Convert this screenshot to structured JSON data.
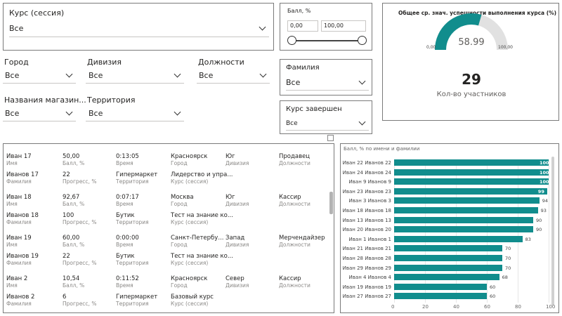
{
  "filters": {
    "course_session": {
      "label": "Курс (сессия)",
      "value": "Все"
    },
    "city": {
      "label": "Город",
      "value": "Все"
    },
    "division": {
      "label": "Дивизия",
      "value": "Все"
    },
    "positions": {
      "label": "Должности",
      "value": "Все"
    },
    "store_names": {
      "label": "Названия магазин...",
      "value": "Все"
    },
    "territory": {
      "label": "Территория",
      "value": "Все"
    },
    "surname": {
      "label": "Фамилия",
      "value": "Все"
    },
    "course_completed": {
      "label": "Курс завершен",
      "value": "Все"
    }
  },
  "score_slider": {
    "label": "Балл, %",
    "min_value": "0,00",
    "max_value": "100,00"
  },
  "gauge": {
    "title": "Общее ср. знач. успешности выполнения курса (%)",
    "value": "58.99",
    "min": "0,00",
    "max": "100,00",
    "fraction": 0.5899,
    "color": "#118d8d"
  },
  "kpi": {
    "value": "29",
    "label": "Кол-во участников"
  },
  "table": {
    "records": [
      {
        "r1": [
          "Иван 17",
          "50,00",
          "0:13:05",
          "Красноярск",
          "Юг",
          "Продавец"
        ],
        "s1": [
          "Имя",
          "Балл, %",
          "Время",
          "Город",
          "Дивизия",
          "Должности"
        ],
        "r2": [
          "Иванов 17",
          "22",
          "Гипермаркет",
          "Лидерство и упра..."
        ],
        "s2": [
          "Фамилия",
          "Прогресс, %",
          "Территория",
          "Курс (сессия)"
        ]
      },
      {
        "r1": [
          "Иван 18",
          "92,67",
          "0:07:17",
          "Москва",
          "Юг",
          "Кассир"
        ],
        "s1": [
          "Имя",
          "Балл, %",
          "Время",
          "Город",
          "Дивизия",
          "Должности"
        ],
        "r2": [
          "Иванов 18",
          "100",
          "Бутик",
          "Тест на знание ко..."
        ],
        "s2": [
          "Фамилия",
          "Прогресс, %",
          "Территория",
          "Курс (сессия)"
        ]
      },
      {
        "r1": [
          "Иван 19",
          "60,00",
          "0:00:00",
          "Санкт-Петербу...",
          "Запад",
          "Мерчендайзер"
        ],
        "s1": [
          "Имя",
          "Балл, %",
          "Время",
          "Город",
          "Дивизия",
          "Должности"
        ],
        "r2": [
          "Иванов 19",
          "22",
          "Бутик",
          "Тест на знание ко..."
        ],
        "s2": [
          "Фамилия",
          "Прогресс, %",
          "Территория",
          "Курс (сессия)"
        ]
      },
      {
        "r1": [
          "Иван 2",
          "10,54",
          "0:11:52",
          "Красноярск",
          "Север",
          "Кассир"
        ],
        "s1": [
          "Имя",
          "Балл, %",
          "Время",
          "Город",
          "Дивизия",
          "Должности"
        ],
        "r2": [
          "Иванов 2",
          "6",
          "Гипермаркет",
          "Базовый курс"
        ],
        "s2": [
          "Фамилия",
          "Прогресс, %",
          "Территория",
          "Курс (сессия)"
        ]
      }
    ]
  },
  "chart_data": {
    "type": "bar",
    "orientation": "horizontal",
    "title": "Балл, % по имени и фамилии",
    "categories": [
      "Иван 22 Иванов 22",
      "Иван 24 Иванов 24",
      "Иван 9 Иванов 9",
      "Иван 23 Иванов 23",
      "Иван 3 Иванов 3",
      "Иван 18 Иванов 18",
      "Иван 13 Иванов 13",
      "Иван 20 Иванов 20",
      "Иван 1 Иванов 1",
      "Иван 21 Иванов 21",
      "Иван 28 Иванов 28",
      "Иван 29 Иванов 29",
      "Иван 4 Иванов 4",
      "Иван 19 Иванов 19",
      "Иван 27 Иванов 27"
    ],
    "values": [
      100,
      100,
      100,
      99,
      94,
      93,
      90,
      90,
      83,
      70,
      70,
      70,
      68,
      60,
      60
    ],
    "xlim": [
      0,
      100
    ],
    "xticks": [
      0,
      20,
      40,
      60,
      80,
      100
    ],
    "color": "#118d8d",
    "grid": true
  }
}
